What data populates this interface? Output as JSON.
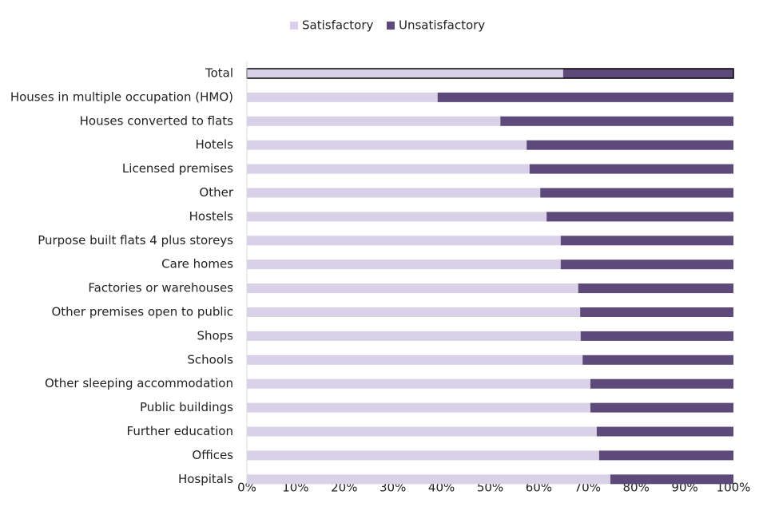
{
  "chart_data": {
    "type": "stacked_barh",
    "categories": [
      "Total",
      "Houses in multiple occupation (HMO)",
      "Houses converted to flats",
      "Hotels",
      "Licensed premises",
      "Other",
      "Hostels",
      "Purpose built flats 4 plus storeys",
      "Care homes",
      "Factories or warehouses",
      "Other premises open to public",
      "Shops",
      "Schools",
      "Other sleeping accommodation",
      "Public buildings",
      "Further education",
      "Offices",
      "Hospitals"
    ],
    "series": [
      {
        "name": "Satisfactory",
        "color": "#d9d1e7",
        "values": [
          65.0,
          39.2,
          52.1,
          57.5,
          58.1,
          60.3,
          61.6,
          64.5,
          64.5,
          68.1,
          68.5,
          68.6,
          69.0,
          70.6,
          70.6,
          71.9,
          72.4,
          74.7
        ]
      },
      {
        "name": "Unsatisfactory",
        "color": "#5d4a7a",
        "values": [
          35.0,
          60.8,
          47.9,
          42.5,
          41.9,
          39.7,
          38.4,
          35.5,
          35.5,
          31.9,
          31.5,
          31.4,
          31.0,
          29.4,
          29.4,
          28.1,
          27.6,
          25.3
        ]
      }
    ],
    "xlim": [
      0,
      100
    ],
    "xticks": [
      {
        "value": 0,
        "label": "0%"
      },
      {
        "value": 10,
        "label": "10%"
      },
      {
        "value": 20,
        "label": "20%"
      },
      {
        "value": 30,
        "label": "30%"
      },
      {
        "value": 40,
        "label": "40%"
      },
      {
        "value": 50,
        "label": "50%"
      },
      {
        "value": 60,
        "label": "60%"
      },
      {
        "value": 70,
        "label": "70%"
      },
      {
        "value": 80,
        "label": "80%"
      },
      {
        "value": 90,
        "label": "90%"
      },
      {
        "value": 100,
        "label": "100%"
      }
    ],
    "legend": "top",
    "grid": false
  }
}
